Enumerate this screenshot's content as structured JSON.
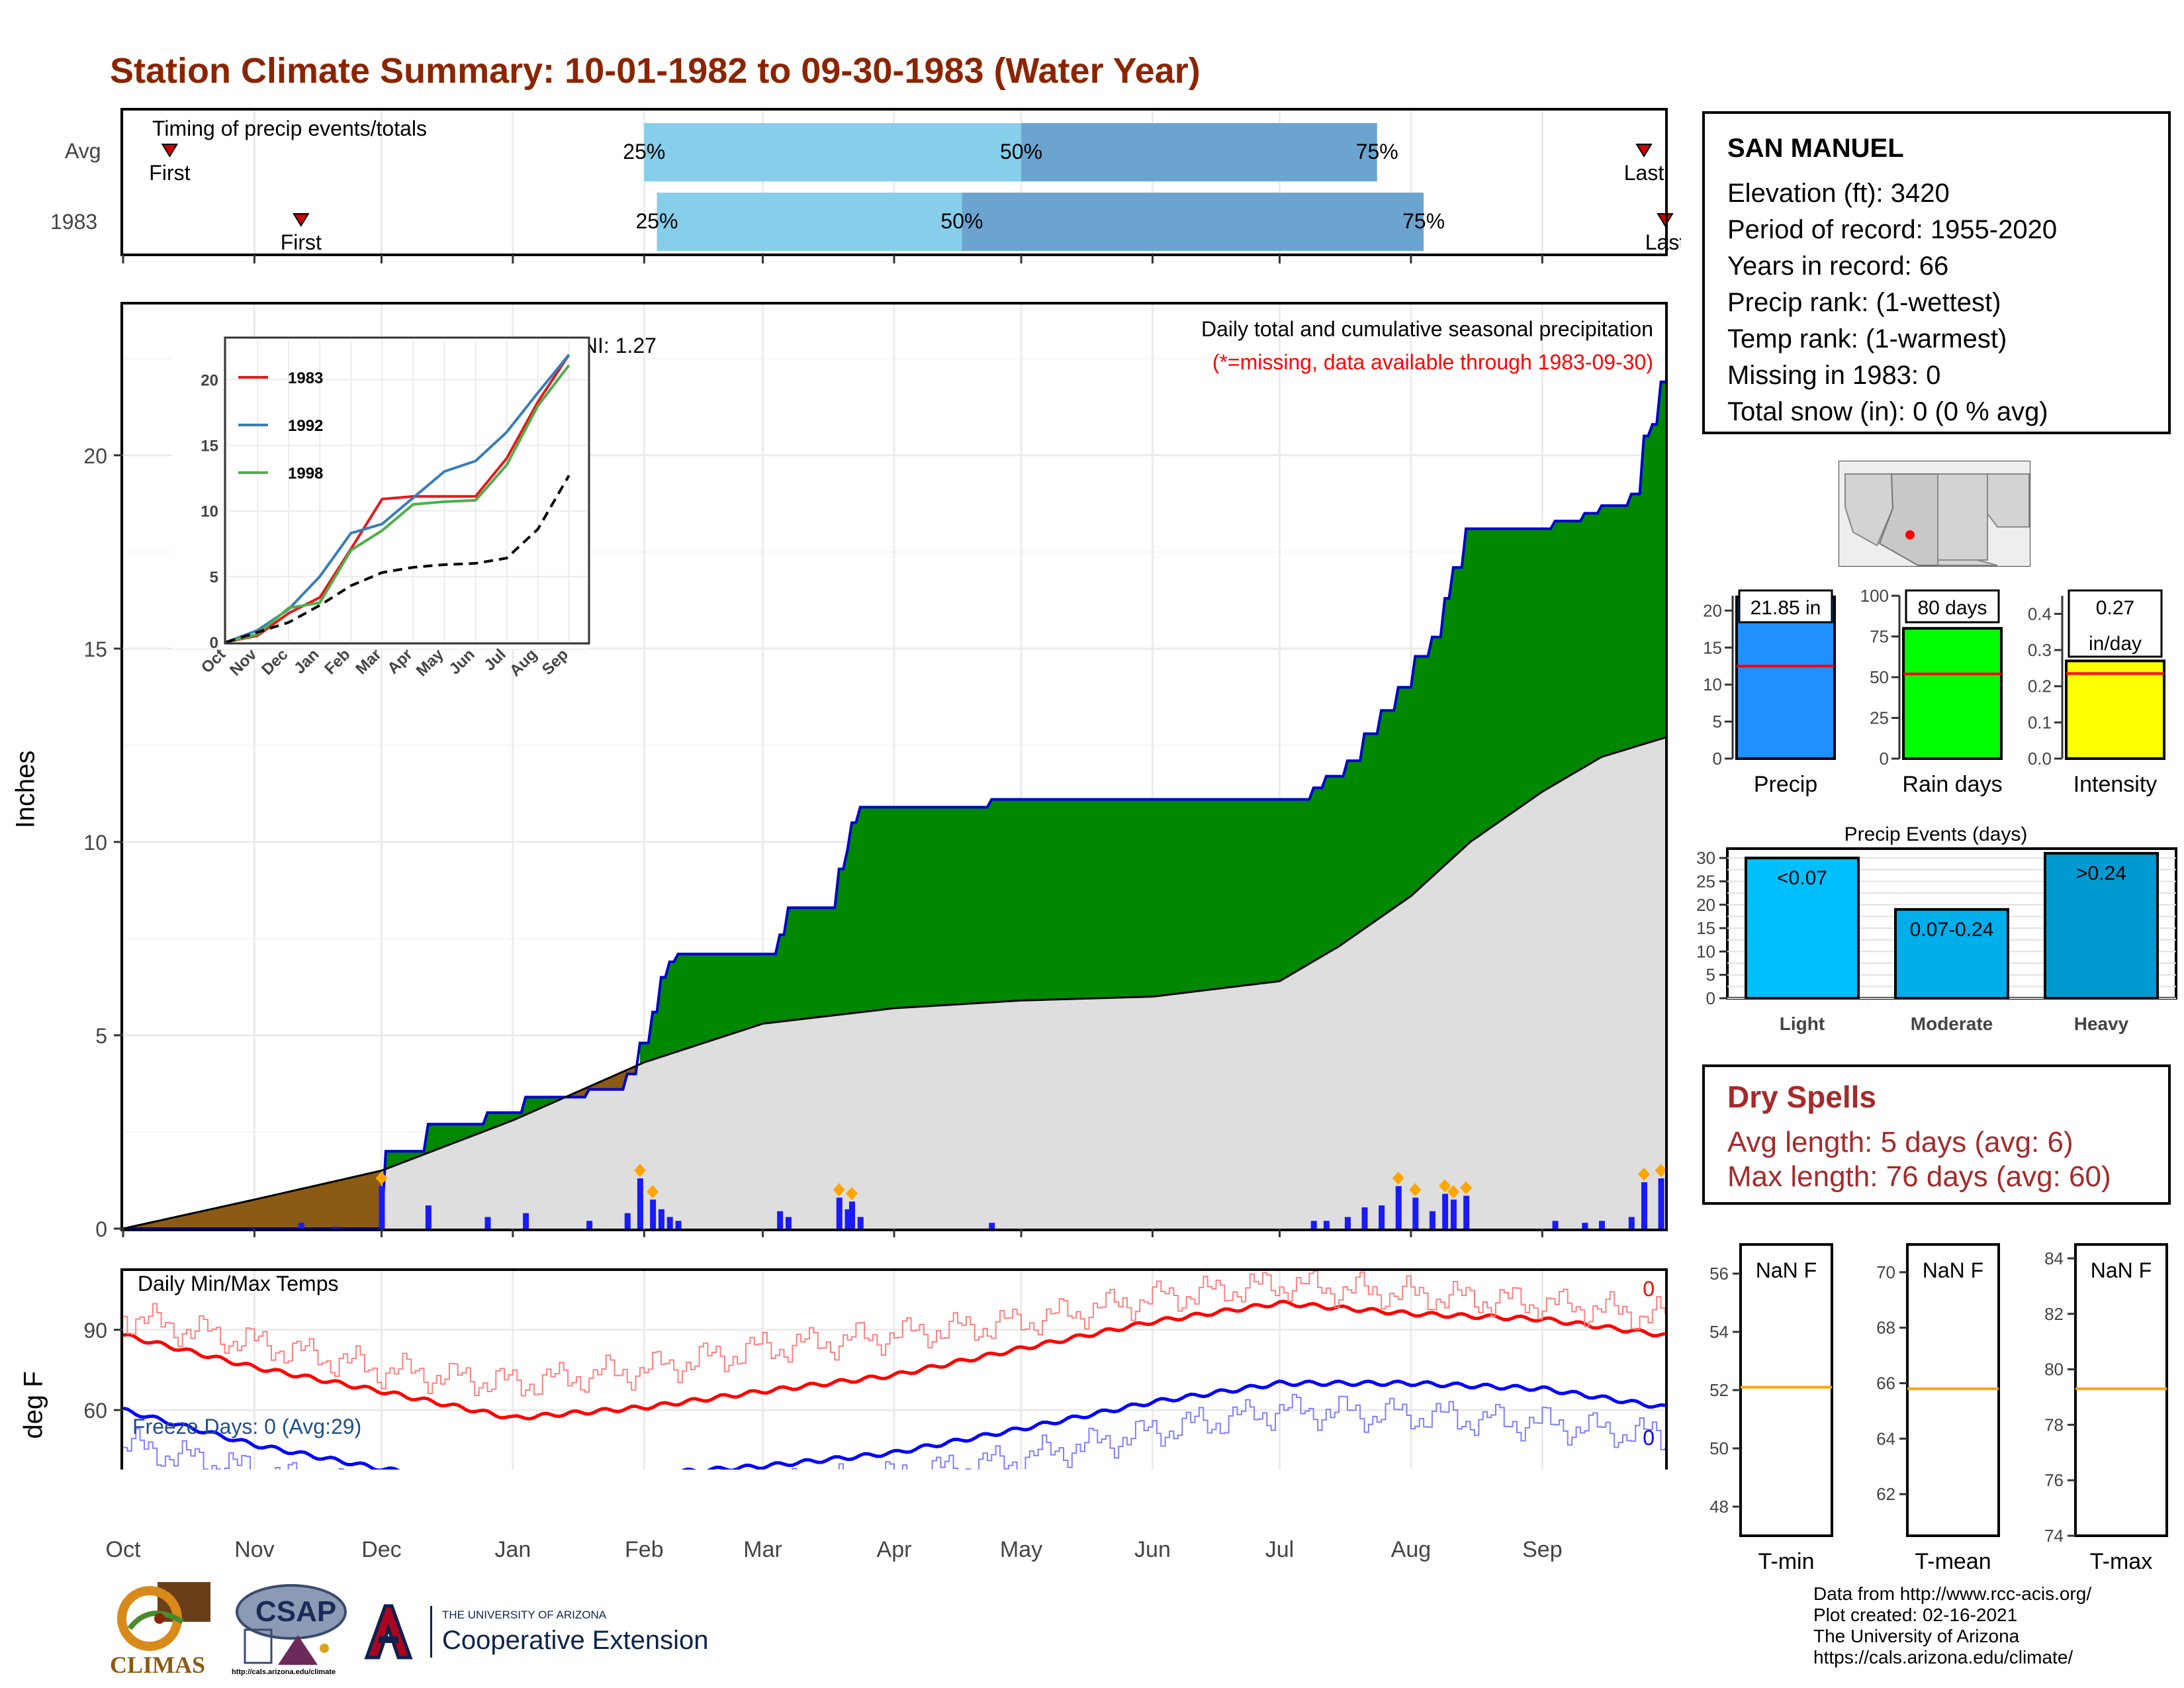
{
  "title": "Station Climate Summary: 10-01-1982 to 09-30-1983 (Water Year)",
  "colors": {
    "title": "#8B2500",
    "light_blue": "#87CEEB",
    "mid_blue": "#6BA5CF",
    "green_fill": "#008800",
    "brown_fill": "#8B5A14",
    "gray_fill": "#DEDEDE",
    "bar_blue": "#1E90FF",
    "bar_green": "#00FF00",
    "bar_yellow": "#FFFF00",
    "event_light": "#00BFFF",
    "event_mod": "#00AEEA",
    "event_heavy": "#0099D0",
    "dry_spell": "#A52A2A",
    "avg_line": "#FFA500"
  },
  "timing": {
    "label": "Timing of precip events/totals",
    "rows": [
      {
        "name": "Avg",
        "first_label": "First",
        "last_label": "Last",
        "p25": "25%",
        "p50": "50%",
        "p75": "75%"
      },
      {
        "name": "1983",
        "first_label": "First",
        "last_label": "Last",
        "p25": "25%",
        "p50": "50%",
        "p75": "75%"
      }
    ]
  },
  "precip_panel": {
    "title": "Daily total and cumulative seasonal precipitation",
    "subtitle": "(*=missing, data available through 1983-09-30)",
    "oni": "ONI: 1.27",
    "ylabel": "Inches"
  },
  "temp_panel": {
    "title": "Daily Min/Max Temps",
    "ylabel": "deg F",
    "freeze": "Freeze Days: 0 (Avg:29)",
    "max_count": "0",
    "min_count": "0"
  },
  "station": {
    "name": "SAN MANUEL",
    "lines": [
      "Elevation (ft): 3420",
      "Period of record: 1955-2020",
      "Years in record: 66",
      "Precip rank:  (1-wettest)",
      "Temp rank:  (1-warmest)",
      "Missing in 1983: 0",
      "Total snow (in): 0 (0 % avg)"
    ]
  },
  "dry_spells": {
    "title": "Dry Spells",
    "avg": "Avg length: 5 days (avg: 6)",
    "max": "Max length: 76 days (avg: 60)"
  },
  "footer": {
    "lines": [
      "Data from http://www.rcc-acis.org/",
      "Plot created: 02-16-2021",
      "The University of Arizona",
      "https://cals.arizona.edu/climate/"
    ],
    "climas": "CLIMAS",
    "csap": "CSAP",
    "csap_url": "http://cals.arizona.edu/climate",
    "ua_small": "THE UNIVERSITY OF ARIZONA",
    "ua_big": "Cooperative Extension"
  },
  "chart_data": [
    {
      "type": "bar",
      "id": "timing",
      "title": "Timing of precip events/totals",
      "x_axis": "day of water year (Oct 1 to Sep 30)",
      "rows": [
        {
          "name": "Avg",
          "first": "1982-10-12",
          "p25": "1983-02-01",
          "p50": "1983-05-01",
          "p75": "1983-07-24",
          "last": "1983-09-25"
        },
        {
          "name": "1983",
          "first": "1982-11-12",
          "p25": "1983-02-04",
          "p50": "1983-04-17",
          "p75": "1983-08-04",
          "last": "1983-09-30"
        }
      ]
    },
    {
      "type": "area",
      "id": "cumulative_precip",
      "title": "Daily total and cumulative seasonal precipitation",
      "ylabel": "Inches",
      "ylim": [
        0,
        22
      ],
      "yticks": [
        0,
        5,
        10,
        15,
        20
      ],
      "xticks": [
        "Oct",
        "Nov",
        "Dec",
        "Jan",
        "Feb",
        "Mar",
        "Apr",
        "May",
        "Jun",
        "Jul",
        "Aug",
        "Sep"
      ],
      "observed_cumulative": [
        [
          "1982-10-01",
          0.0
        ],
        [
          "1982-12-01",
          0.0
        ],
        [
          "1982-12-02",
          2.0
        ],
        [
          "1982-12-11",
          2.0
        ],
        [
          "1982-12-12",
          2.7
        ],
        [
          "1982-12-25",
          2.7
        ],
        [
          "1982-12-26",
          3.0
        ],
        [
          "1983-01-03",
          3.0
        ],
        [
          "1983-01-04",
          3.4
        ],
        [
          "1983-01-18",
          3.4
        ],
        [
          "1983-01-19",
          3.6
        ],
        [
          "1983-01-27",
          3.6
        ],
        [
          "1983-01-28",
          4.0
        ],
        [
          "1983-01-31",
          4.8
        ],
        [
          "1983-02-03",
          5.6
        ],
        [
          "1983-02-05",
          6.5
        ],
        [
          "1983-02-07",
          6.9
        ],
        [
          "1983-02-09",
          7.1
        ],
        [
          "1983-03-03",
          7.1
        ],
        [
          "1983-03-05",
          7.6
        ],
        [
          "1983-03-07",
          8.3
        ],
        [
          "1983-03-18",
          8.3
        ],
        [
          "1983-03-19",
          9.3
        ],
        [
          "1983-03-21",
          9.8
        ],
        [
          "1983-03-22",
          10.5
        ],
        [
          "1983-03-24",
          10.9
        ],
        [
          "1983-04-24",
          11.1
        ],
        [
          "1983-07-07",
          11.1
        ],
        [
          "1983-07-09",
          11.4
        ],
        [
          "1983-07-12",
          11.7
        ],
        [
          "1983-07-17",
          12.1
        ],
        [
          "1983-07-21",
          12.8
        ],
        [
          "1983-07-25",
          13.4
        ],
        [
          "1983-07-29",
          14.0
        ],
        [
          "1983-08-02",
          14.8
        ],
        [
          "1983-08-06",
          15.3
        ],
        [
          "1983-08-09",
          16.3
        ],
        [
          "1983-08-11",
          17.1
        ],
        [
          "1983-08-14",
          18.1
        ],
        [
          "1983-08-26",
          18.1
        ],
        [
          "1983-09-04",
          18.3
        ],
        [
          "1983-09-11",
          18.5
        ],
        [
          "1983-09-15",
          18.7
        ],
        [
          "1983-09-22",
          19.0
        ],
        [
          "1983-09-25",
          20.5
        ],
        [
          "1983-09-27",
          20.8
        ],
        [
          "1983-09-29",
          21.9
        ],
        [
          "1983-09-30",
          21.9
        ]
      ],
      "average_cumulative": [
        [
          "1982-10-01",
          0.0
        ],
        [
          "1982-11-01",
          0.75
        ],
        [
          "1982-12-01",
          1.5
        ],
        [
          "1983-01-01",
          2.8
        ],
        [
          "1983-02-01",
          4.3
        ],
        [
          "1983-03-01",
          5.3
        ],
        [
          "1983-04-01",
          5.7
        ],
        [
          "1983-05-01",
          5.9
        ],
        [
          "1983-06-01",
          6.0
        ],
        [
          "1983-07-01",
          6.4
        ],
        [
          "1983-07-15",
          7.3
        ],
        [
          "1983-08-01",
          8.6
        ],
        [
          "1983-08-15",
          10.0
        ],
        [
          "1983-09-01",
          11.3
        ],
        [
          "1983-09-15",
          12.2
        ],
        [
          "1983-09-30",
          12.7
        ]
      ],
      "daily_precip": [
        [
          "1982-11-12",
          0.15
        ],
        [
          "1982-11-20",
          0.05
        ],
        [
          "1982-12-01",
          1.1
        ],
        [
          "1982-12-12",
          0.6
        ],
        [
          "1982-12-26",
          0.3
        ],
        [
          "1983-01-04",
          0.4
        ],
        [
          "1983-01-19",
          0.2
        ],
        [
          "1983-01-28",
          0.4
        ],
        [
          "1983-01-31",
          1.3
        ],
        [
          "1983-02-03",
          0.75
        ],
        [
          "1983-02-05",
          0.5
        ],
        [
          "1983-02-07",
          0.3
        ],
        [
          "1983-02-09",
          0.2
        ],
        [
          "1983-03-05",
          0.45
        ],
        [
          "1983-03-07",
          0.3
        ],
        [
          "1983-03-19",
          0.8
        ],
        [
          "1983-03-21",
          0.5
        ],
        [
          "1983-03-22",
          0.7
        ],
        [
          "1983-03-24",
          0.3
        ],
        [
          "1983-04-24",
          0.15
        ],
        [
          "1983-07-09",
          0.2
        ],
        [
          "1983-07-12",
          0.2
        ],
        [
          "1983-07-17",
          0.3
        ],
        [
          "1983-07-21",
          0.55
        ],
        [
          "1983-07-25",
          0.6
        ],
        [
          "1983-07-29",
          1.1
        ],
        [
          "1983-08-02",
          0.8
        ],
        [
          "1983-08-06",
          0.45
        ],
        [
          "1983-08-09",
          0.9
        ],
        [
          "1983-08-11",
          0.75
        ],
        [
          "1983-08-14",
          0.85
        ],
        [
          "1983-09-04",
          0.2
        ],
        [
          "1983-09-11",
          0.15
        ],
        [
          "1983-09-15",
          0.2
        ],
        [
          "1983-09-22",
          0.3
        ],
        [
          "1983-09-25",
          1.2
        ],
        [
          "1983-09-29",
          1.3
        ]
      ]
    },
    {
      "type": "line",
      "id": "inset_cumulative",
      "xticks": [
        "Oct",
        "Nov",
        "Dec",
        "Jan",
        "Feb",
        "Mar",
        "Apr",
        "May",
        "Jun",
        "Jul",
        "Aug",
        "Sep"
      ],
      "yticks": [
        0,
        5,
        10,
        15,
        20
      ],
      "ylim": [
        0,
        22
      ],
      "series": [
        {
          "name": "1983",
          "color": "#E41A1C",
          "values": [
            0,
            0.5,
            2.2,
            3.4,
            7.1,
            10.9,
            11.1,
            11.1,
            11.1,
            14.0,
            18.3,
            21.9
          ]
        },
        {
          "name": "1992",
          "color": "#377EB8",
          "values": [
            0,
            0.9,
            2.5,
            5.0,
            8.3,
            9.0,
            11.0,
            13.0,
            13.8,
            16.0,
            19.0,
            21.9
          ]
        },
        {
          "name": "1998",
          "color": "#4DAF4A",
          "values": [
            0,
            0.6,
            2.6,
            3.0,
            7.0,
            8.5,
            10.5,
            10.7,
            10.8,
            13.5,
            18.0,
            21.1
          ]
        },
        {
          "name": "Avg",
          "color": "#000000",
          "dashed": true,
          "values": [
            0,
            0.75,
            1.5,
            2.8,
            4.3,
            5.3,
            5.7,
            5.9,
            6.0,
            6.4,
            8.6,
            12.7
          ]
        }
      ]
    },
    {
      "type": "bar",
      "id": "totals",
      "panels": [
        {
          "label": "Precip",
          "value": 21.85,
          "value_text": "21.85 in",
          "avg": 12.5,
          "ylim": [
            0,
            22
          ],
          "yticks": [
            0,
            5,
            10,
            15,
            20
          ],
          "color": "#1E90FF"
        },
        {
          "label": "Rain days",
          "value": 80,
          "value_text": "80 days",
          "avg": 52,
          "ylim": [
            0,
            100
          ],
          "yticks": [
            0,
            25,
            50,
            75,
            100
          ],
          "color": "#00FF00"
        },
        {
          "label": "Intensity",
          "value": 0.27,
          "value_text": "0.27 in/day",
          "avg": 0.235,
          "ylim": [
            0,
            0.45
          ],
          "yticks": [
            0.0,
            0.1,
            0.2,
            0.3,
            0.4
          ],
          "color": "#FFFF00"
        }
      ]
    },
    {
      "type": "bar",
      "id": "precip_events",
      "title": "Precip Events (days)",
      "categories": [
        "Light",
        "Moderate",
        "Heavy"
      ],
      "bar_labels": [
        "<0.07",
        "0.07-0.24",
        ">0.24"
      ],
      "values": [
        30,
        19,
        31
      ],
      "ylim": [
        0,
        32
      ],
      "yticks": [
        0,
        5,
        10,
        15,
        20,
        25,
        30
      ]
    },
    {
      "type": "line",
      "id": "daily_temps",
      "title": "Daily Min/Max Temps",
      "ylabel": "deg F",
      "ylim": [
        14,
        112
      ],
      "yticks": [
        30,
        60,
        90
      ],
      "freeze_line": 32,
      "xticks": [
        "Oct",
        "Nov",
        "Dec",
        "Jan",
        "Feb",
        "Mar",
        "Apr",
        "May",
        "Jun",
        "Jul",
        "Aug",
        "Sep"
      ],
      "series": [
        {
          "name": "avg max",
          "color": "#FF0000",
          "values": [
            [
              "1982-10-01",
              88
            ],
            [
              "1982-11-01",
              76
            ],
            [
              "1982-12-01",
              67
            ],
            [
              "1983-01-01",
              57
            ],
            [
              "1983-02-01",
              61
            ],
            [
              "1983-03-01",
              67
            ],
            [
              "1983-04-01",
              73
            ],
            [
              "1983-05-01",
              83
            ],
            [
              "1983-06-01",
              93
            ],
            [
              "1983-07-01",
              100
            ],
            [
              "1983-08-01",
              96
            ],
            [
              "1983-09-01",
              94
            ],
            [
              "1983-09-30",
              88
            ]
          ]
        },
        {
          "name": "avg min",
          "color": "#0000FF",
          "values": [
            [
              "1982-10-01",
              60
            ],
            [
              "1982-11-01",
              47
            ],
            [
              "1982-12-01",
              38
            ],
            [
              "1983-01-01",
              32
            ],
            [
              "1983-02-01",
              36
            ],
            [
              "1983-03-01",
              39
            ],
            [
              "1983-04-01",
              44
            ],
            [
              "1983-05-01",
              53
            ],
            [
              "1983-06-01",
              63
            ],
            [
              "1983-07-01",
              70
            ],
            [
              "1983-08-01",
              70
            ],
            [
              "1983-09-01",
              68
            ],
            [
              "1983-09-30",
              61
            ]
          ]
        },
        {
          "name": "daily max",
          "color": "#FF8080",
          "values": [
            [
              "1982-10-01",
              95
            ],
            [
              "1982-11-01",
              85
            ],
            [
              "1982-12-01",
              75
            ],
            [
              "1983-01-01",
              70
            ],
            [
              "1983-02-01",
              75
            ],
            [
              "1983-03-01",
              83
            ],
            [
              "1983-04-01",
              88
            ],
            [
              "1983-05-01",
              93
            ],
            [
              "1983-06-01",
              102
            ],
            [
              "1983-07-01",
              107
            ],
            [
              "1983-08-01",
              103
            ],
            [
              "1983-09-01",
              100
            ],
            [
              "1983-09-30",
              95
            ]
          ]
        },
        {
          "name": "daily min",
          "color": "#8080FF",
          "values": [
            [
              "1982-10-01",
              47
            ],
            [
              "1982-11-01",
              37
            ],
            [
              "1982-12-01",
              28
            ],
            [
              "1983-01-01",
              22
            ],
            [
              "1983-02-01",
              27
            ],
            [
              "1983-03-01",
              30
            ],
            [
              "1983-04-01",
              35
            ],
            [
              "1983-05-01",
              42
            ],
            [
              "1983-06-01",
              52
            ],
            [
              "1983-07-01",
              60
            ],
            [
              "1983-08-01",
              58
            ],
            [
              "1983-09-01",
              55
            ],
            [
              "1983-09-30",
              50
            ]
          ]
        }
      ]
    },
    {
      "type": "bar",
      "id": "temp_summary",
      "panels": [
        {
          "label": "T-min",
          "value_text": "NaN F",
          "avg": 52.1,
          "ylim": [
            47,
            57
          ],
          "yticks": [
            48,
            50,
            52,
            54,
            56
          ]
        },
        {
          "label": "T-mean",
          "value_text": "NaN F",
          "avg": 65.8,
          "ylim": [
            60.5,
            71
          ],
          "yticks": [
            62,
            64,
            66,
            68,
            70
          ]
        },
        {
          "label": "T-max",
          "value_text": "NaN F",
          "avg": 79.3,
          "ylim": [
            74,
            84.5
          ],
          "yticks": [
            74,
            76,
            78,
            80,
            82,
            84
          ]
        }
      ]
    }
  ]
}
